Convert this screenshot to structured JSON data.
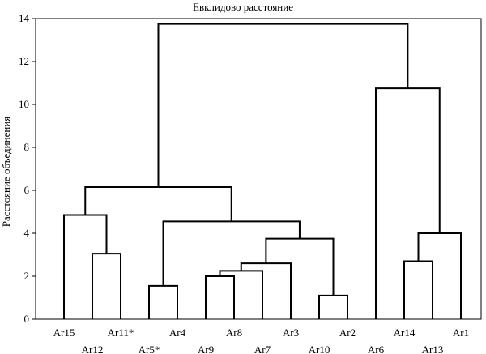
{
  "chart_data": {
    "type": "dendrogram",
    "title": "Евклидово расстояние",
    "xlabel": "",
    "ylabel": "Расстояние объединения",
    "ylim": [
      0,
      14
    ],
    "yticks": [
      0,
      2,
      4,
      6,
      8,
      10,
      12,
      14
    ],
    "grid": false,
    "leaves": [
      "Ar15",
      "Ar12",
      "Ar11*",
      "Ar5*",
      "Ar4",
      "Ar9",
      "Ar8",
      "Ar7",
      "Ar3",
      "Ar10",
      "Ar2",
      "Ar6",
      "Ar14",
      "Ar13",
      "Ar1"
    ],
    "merges": [
      {
        "a": "Ar10",
        "b": "Ar2",
        "height": 1.1
      },
      {
        "a": "Ar5*",
        "b": "Ar4",
        "height": 1.55
      },
      {
        "a": "Ar9",
        "b": "Ar8",
        "height": 2.0
      },
      {
        "a": "Ar9+Ar8",
        "b": "Ar7",
        "height": 2.25
      },
      {
        "a": "Ar9+Ar8+Ar7",
        "b": "Ar3",
        "height": 2.6
      },
      {
        "a": "Ar14",
        "b": "Ar13",
        "height": 2.7
      },
      {
        "a": "Ar12",
        "b": "Ar11*",
        "height": 3.05
      },
      {
        "a": "Ar9..Ar3",
        "b": "Ar10+Ar2",
        "height": 3.75
      },
      {
        "a": "Ar14+Ar13",
        "b": "Ar1",
        "height": 4.0
      },
      {
        "a": "Ar5*+Ar4",
        "b": "Ar9..Ar2",
        "height": 4.55
      },
      {
        "a": "Ar15",
        "b": "Ar12+Ar11*",
        "height": 4.85
      },
      {
        "a": "Ar15..Ar11*",
        "b": "Ar5*..Ar2",
        "height": 6.15
      },
      {
        "a": "Ar6",
        "b": "Ar14+Ar13+Ar1",
        "height": 10.75
      },
      {
        "a": "Ar15..Ar2",
        "b": "Ar6..Ar1",
        "height": 13.75
      }
    ]
  }
}
